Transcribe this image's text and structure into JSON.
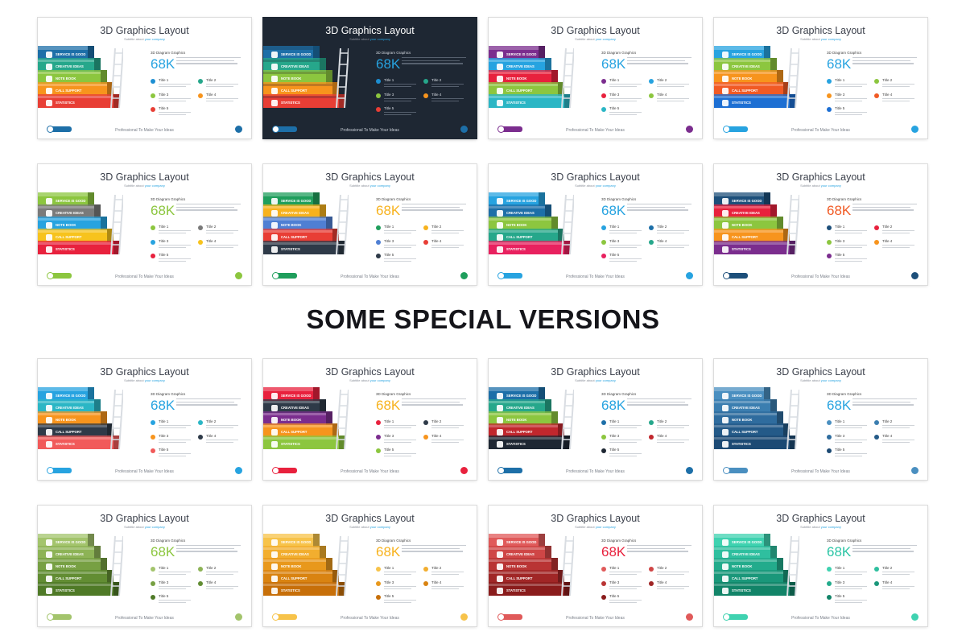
{
  "heading": "SOME SPECIAL VERSIONS",
  "slide": {
    "title": "3D Graphics Layout",
    "subtitle_prefix": "Subtitle about ",
    "subtitle_accent": "your company",
    "diagram_label": "3D Diagram Graphics",
    "big_number": "68K",
    "steps": [
      "SERVICE IS GOOD",
      "CREATIVE IDEAS",
      "NOTE BOOK",
      "CALL SUPPORT",
      "STATISTICS"
    ],
    "items": [
      "Title 1",
      "Title 2",
      "Title 3",
      "Title 4",
      "Title 5"
    ],
    "footer": "Professional To Make Your Ideas"
  },
  "slides": [
    {
      "id": "top-1",
      "dark": false,
      "accent": "#27a3e0",
      "colors": [
        "#1d6fa8",
        "#26a78b",
        "#8cc63f",
        "#f7941d",
        "#e83e35"
      ],
      "dots": [
        "#1d8fd3",
        "#26a78b",
        "#8cc63f",
        "#f7941d",
        "#e83e35"
      ]
    },
    {
      "id": "top-2",
      "dark": true,
      "accent": "#27a3e0",
      "colors": [
        "#1d6fa8",
        "#26a78b",
        "#8cc63f",
        "#f7941d",
        "#e83e35"
      ],
      "dots": [
        "#1d8fd3",
        "#26a78b",
        "#8cc63f",
        "#f7941d",
        "#e83e35"
      ]
    },
    {
      "id": "top-3",
      "dark": false,
      "accent": "#27a3e0",
      "colors": [
        "#7b2d8e",
        "#26a3e0",
        "#e8213d",
        "#8cc63f",
        "#2bb6c5"
      ],
      "dots": [
        "#7b2d8e",
        "#26a3e0",
        "#e8213d",
        "#8cc63f",
        "#2bb6c5"
      ]
    },
    {
      "id": "top-4",
      "dark": false,
      "accent": "#27a3e0",
      "colors": [
        "#27a3e0",
        "#8cc63f",
        "#f7941d",
        "#f15a24",
        "#1d6fd3"
      ],
      "dots": [
        "#27a3e0",
        "#8cc63f",
        "#f7941d",
        "#f15a24",
        "#1d6fd3"
      ]
    },
    {
      "id": "mid-1",
      "dark": false,
      "accent": "#8cc63f",
      "colors": [
        "#8cc63f",
        "#7a7a7a",
        "#27a3e0",
        "#f7c31d",
        "#e8213d"
      ],
      "dots": [
        "#8cc63f",
        "#7a7a7a",
        "#27a3e0",
        "#f7c31d",
        "#e8213d"
      ]
    },
    {
      "id": "mid-2",
      "dark": false,
      "accent": "#f7b21d",
      "colors": [
        "#1f9e5c",
        "#f7b21d",
        "#4f7fd3",
        "#e83e35",
        "#2e3a48"
      ],
      "dots": [
        "#1f9e5c",
        "#f7b21d",
        "#4f7fd3",
        "#e83e35",
        "#2e3a48"
      ]
    },
    {
      "id": "mid-3",
      "dark": false,
      "accent": "#27a3e0",
      "colors": [
        "#27a3e0",
        "#1d6fa8",
        "#8cc63f",
        "#26a78b",
        "#e8215f"
      ],
      "dots": [
        "#27a3e0",
        "#1d6fa8",
        "#8cc63f",
        "#26a78b",
        "#e8215f"
      ]
    },
    {
      "id": "mid-4",
      "dark": false,
      "accent": "#f15a24",
      "colors": [
        "#1d4f7a",
        "#e8213d",
        "#8cc63f",
        "#f7941d",
        "#7b2d8e"
      ],
      "dots": [
        "#1d4f7a",
        "#e8213d",
        "#8cc63f",
        "#f7941d",
        "#7b2d8e"
      ]
    },
    {
      "id": "bot-1",
      "dark": false,
      "accent": "#27a3e0",
      "colors": [
        "#27a3e0",
        "#2bb6c5",
        "#f7941d",
        "#2e3a48",
        "#f15a5a"
      ],
      "dots": [
        "#27a3e0",
        "#2bb6c5",
        "#f7941d",
        "#2e3a48",
        "#f15a5a"
      ]
    },
    {
      "id": "bot-2",
      "dark": false,
      "accent": "#f7b21d",
      "colors": [
        "#e8213d",
        "#2e3a48",
        "#7b2d8e",
        "#f7941d",
        "#8cc63f"
      ],
      "dots": [
        "#e8213d",
        "#2e3a48",
        "#7b2d8e",
        "#f7941d",
        "#8cc63f"
      ]
    },
    {
      "id": "bot-3",
      "dark": false,
      "accent": "#27a3e0",
      "colors": [
        "#1d6fa8",
        "#26a78b",
        "#8cc63f",
        "#c1272d",
        "#1e2733"
      ],
      "dots": [
        "#1d6fa8",
        "#26a78b",
        "#8cc63f",
        "#c1272d",
        "#1e2733"
      ]
    },
    {
      "id": "bot-4",
      "dark": false,
      "accent": "#27a3e0",
      "colors": [
        "#4a8fc0",
        "#3b7eb0",
        "#2f6c9e",
        "#245a88",
        "#1c4a74"
      ],
      "dots": [
        "#4a8fc0",
        "#3b7eb0",
        "#2f6c9e",
        "#245a88",
        "#1c4a74"
      ]
    },
    {
      "id": "b2-1",
      "dark": false,
      "accent": "#8cc63f",
      "colors": [
        "#a3c46c",
        "#8db356",
        "#77a043",
        "#628d33",
        "#4f7a27"
      ],
      "dots": [
        "#a3c46c",
        "#8db356",
        "#77a043",
        "#628d33",
        "#4f7a27"
      ]
    },
    {
      "id": "b2-2",
      "dark": false,
      "accent": "#f7b21d",
      "colors": [
        "#f7c34a",
        "#f2ae2f",
        "#e8981c",
        "#d98311",
        "#c76f09"
      ],
      "dots": [
        "#f7c34a",
        "#f2ae2f",
        "#e8981c",
        "#d98311",
        "#c76f09"
      ]
    },
    {
      "id": "b2-3",
      "dark": false,
      "accent": "#e8213d",
      "colors": [
        "#e05a5a",
        "#cf4646",
        "#b93434",
        "#a02626",
        "#8a1c1c"
      ],
      "dots": [
        "#e05a5a",
        "#cf4646",
        "#b93434",
        "#a02626",
        "#8a1c1c"
      ]
    },
    {
      "id": "b2-4",
      "dark": false,
      "accent": "#2bc5a5",
      "colors": [
        "#3fd2b0",
        "#2fbf9f",
        "#23ab8c",
        "#1a977a",
        "#128468"
      ],
      "dots": [
        "#3fd2b0",
        "#2fbf9f",
        "#23ab8c",
        "#1a977a",
        "#128468"
      ]
    }
  ]
}
